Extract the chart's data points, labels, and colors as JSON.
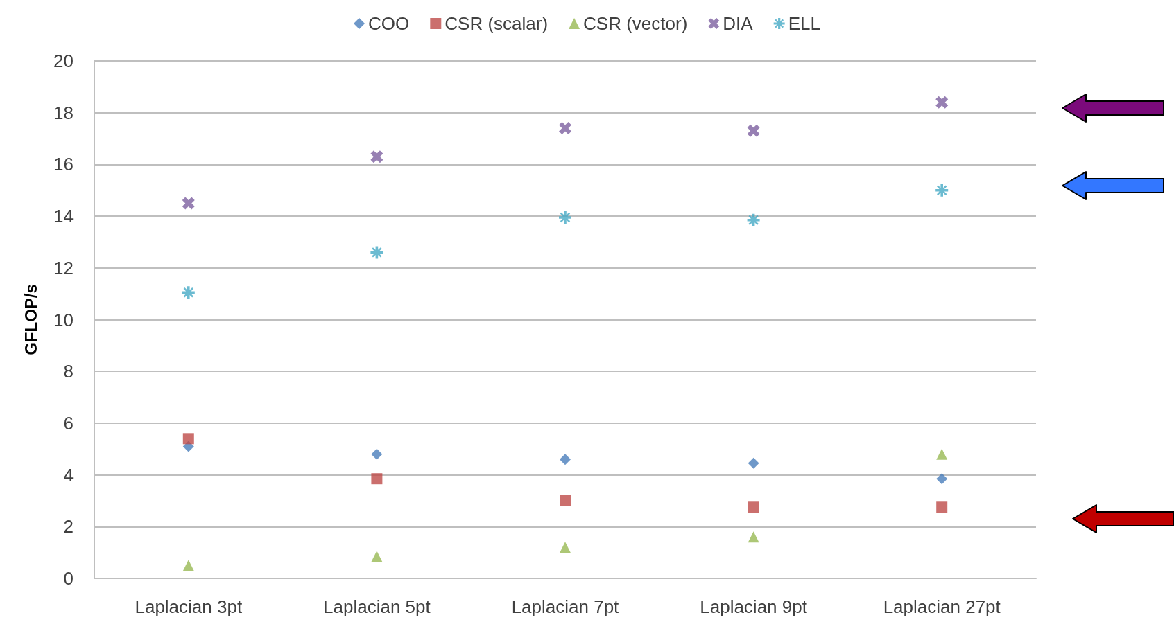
{
  "chart_data": {
    "type": "scatter",
    "ylabel": "GFLOP/s",
    "categories": [
      "Laplacian 3pt",
      "Laplacian 5pt",
      "Laplacian 7pt",
      "Laplacian 9pt",
      "Laplacian 27pt"
    ],
    "ylim": [
      0,
      20
    ],
    "yticks": [
      0,
      2,
      4,
      6,
      8,
      10,
      12,
      14,
      16,
      18,
      20
    ],
    "grid": "y",
    "legend": "top",
    "series": [
      {
        "name": "COO",
        "color": "#4a7ebb",
        "marker": "diamond",
        "values": [
          5.1,
          4.8,
          4.6,
          4.45,
          3.85
        ]
      },
      {
        "name": "CSR (scalar)",
        "color": "#be4b48",
        "marker": "square",
        "values": [
          5.4,
          3.85,
          3.0,
          2.75,
          2.75
        ]
      },
      {
        "name": "CSR (vector)",
        "color": "#98b954",
        "marker": "triangle",
        "values": [
          0.5,
          0.85,
          1.2,
          1.6,
          4.8
        ]
      },
      {
        "name": "DIA",
        "color": "#7d60a0",
        "marker": "cross",
        "values": [
          14.5,
          16.3,
          17.4,
          17.3,
          18.4
        ]
      },
      {
        "name": "ELL",
        "color": "#46aac5",
        "marker": "star",
        "values": [
          11.05,
          12.6,
          13.95,
          13.85,
          15.0
        ]
      }
    ]
  }
}
